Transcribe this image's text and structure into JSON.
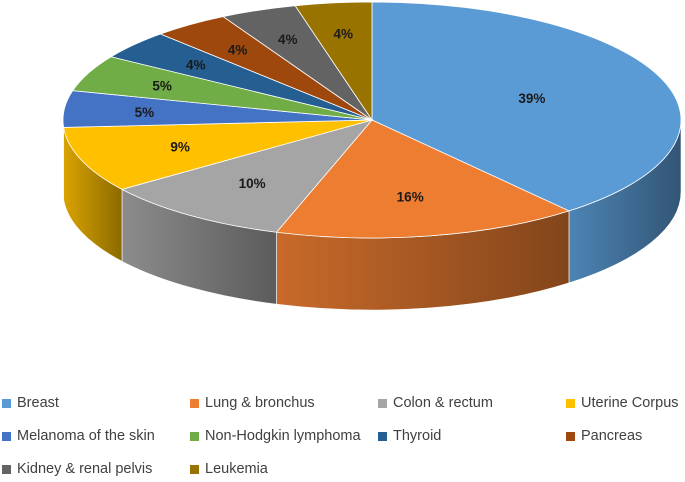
{
  "chart_data": {
    "type": "pie",
    "title": "",
    "series": [
      {
        "values": [
          39,
          16,
          10,
          9,
          5,
          5,
          4,
          4,
          4,
          4
        ]
      }
    ],
    "categories": [
      "Breast",
      "Lung & bronchus",
      "Colon & rectum",
      "Uterine Corpus",
      "Melanoma of the skin",
      "Non-Hodgkin lymphoma",
      "Thyroid",
      "Pancreas",
      "Kidney & renal pelvis",
      "Leukemia"
    ],
    "data_labels": [
      "39%",
      "16%",
      "10%",
      "9%",
      "5%",
      "5%",
      "4%",
      "4%",
      "4%",
      "4%"
    ],
    "colors": [
      "#5B9BD5",
      "#ED7D31",
      "#A5A5A5",
      "#FFC000",
      "#4472C4",
      "#70AD47",
      "#255E91",
      "#9E480E",
      "#636363",
      "#997300"
    ],
    "legend_position": "bottom",
    "style": "3d"
  }
}
